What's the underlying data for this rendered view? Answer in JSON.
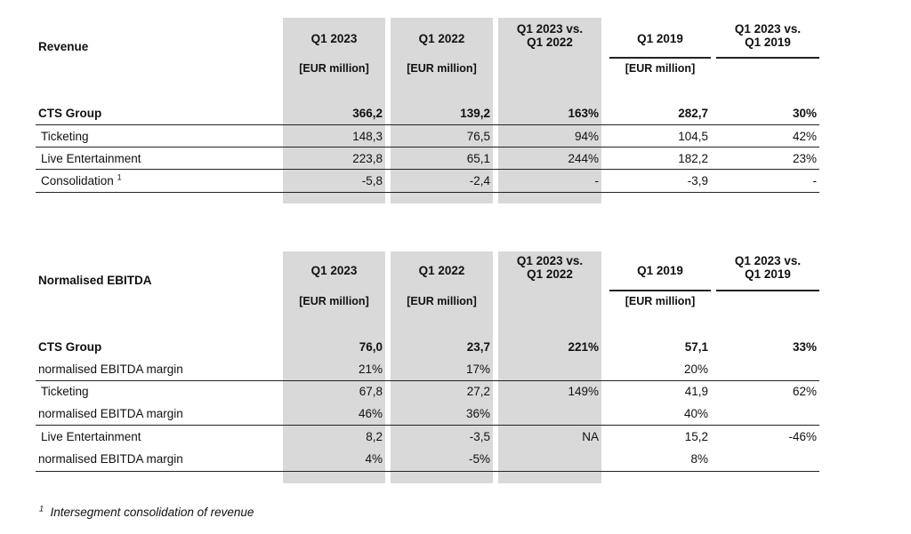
{
  "revenue": {
    "title": "Revenue",
    "headers": [
      "Q1 2023",
      "Q1 2022",
      "Q1 2023 vs.\nQ1 2022",
      "Q1 2019",
      "Q1 2023 vs.\nQ1 2019"
    ],
    "units": [
      "[EUR million]",
      "[EUR million]",
      "",
      "[EUR million]",
      ""
    ],
    "rows": [
      {
        "label": "CTS Group",
        "bold": true,
        "values": [
          "366,2",
          "139,2",
          "163%",
          "282,7",
          "30%"
        ]
      },
      {
        "label": "Ticketing",
        "bold": false,
        "values": [
          "148,3",
          "76,5",
          "94%",
          "104,5",
          "42%"
        ]
      },
      {
        "label": "Live Entertainment",
        "bold": false,
        "values": [
          "223,8",
          "65,1",
          "244%",
          "182,2",
          "23%"
        ]
      },
      {
        "label": "Consolidation",
        "sup": "1",
        "bold": false,
        "values": [
          "-5,8",
          "-2,4",
          "-",
          "-3,9",
          "-"
        ]
      }
    ]
  },
  "ebitda": {
    "title": "Normalised EBITDA",
    "headers": [
      "Q1 2023",
      "Q1 2022",
      "Q1 2023 vs.\nQ1 2022",
      "Q1 2019",
      "Q1 2023 vs.\nQ1 2019"
    ],
    "units": [
      "[EUR million]",
      "[EUR million]",
      "",
      "[EUR million]",
      ""
    ],
    "rows": [
      {
        "label": "CTS Group",
        "bold": true,
        "values": [
          "76,0",
          "23,7",
          "221%",
          "57,1",
          "33%"
        ]
      },
      {
        "label": "normalised EBITDA margin",
        "bold": false,
        "values": [
          "21%",
          "17%",
          "",
          "20%",
          ""
        ]
      },
      {
        "label": "Ticketing",
        "bold": false,
        "values": [
          "67,8",
          "27,2",
          "149%",
          "41,9",
          "62%"
        ]
      },
      {
        "label": "normalised EBITDA margin",
        "bold": false,
        "values": [
          "46%",
          "36%",
          "",
          "40%",
          ""
        ]
      },
      {
        "label": "Live Entertainment",
        "bold": false,
        "values": [
          "8,2",
          "-3,5",
          "NA",
          "15,2",
          "-46%"
        ]
      },
      {
        "label": "normalised EBITDA margin",
        "bold": false,
        "values": [
          "4%",
          "-5%",
          "",
          "8%",
          ""
        ]
      }
    ]
  },
  "footnote": {
    "marker": "1",
    "text": "Intersegment consolidation of revenue"
  },
  "colors": {
    "shade": "#d9d9d9",
    "text": "#111111",
    "rule": "#222222"
  }
}
